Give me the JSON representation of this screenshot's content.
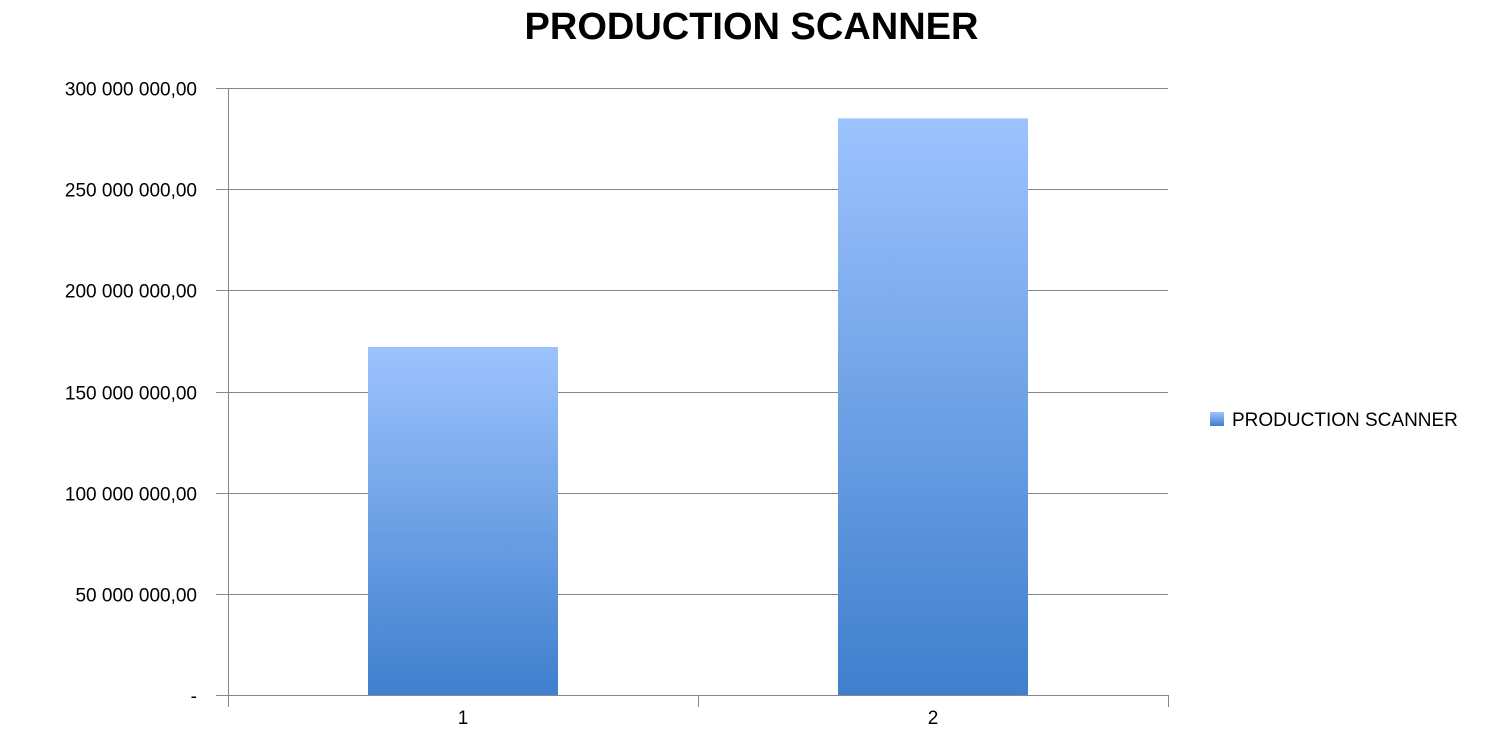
{
  "chart_data": {
    "type": "bar",
    "title": "PRODUCTION SCANNER",
    "xlabel": "",
    "ylabel": "",
    "categories": [
      "1",
      "2"
    ],
    "series": [
      {
        "name": "PRODUCTION SCANNER",
        "values": [
          172000000,
          285000000
        ]
      }
    ],
    "ylim": [
      0,
      300000000
    ],
    "y_ticks": [
      0,
      50000000,
      100000000,
      150000000,
      200000000,
      250000000,
      300000000
    ],
    "y_tick_labels": [
      "-",
      "50 000 000,00",
      "100 000 000,00",
      "150 000 000,00",
      "200 000 000,00",
      "250 000 000,00",
      "300 000 000,00"
    ],
    "grid": true,
    "legend_position": "right",
    "colors": {
      "bar_top": "#9dc3fe",
      "bar_bottom": "#3f7fcd",
      "gridline": "#868686",
      "axis": "#868686"
    }
  }
}
